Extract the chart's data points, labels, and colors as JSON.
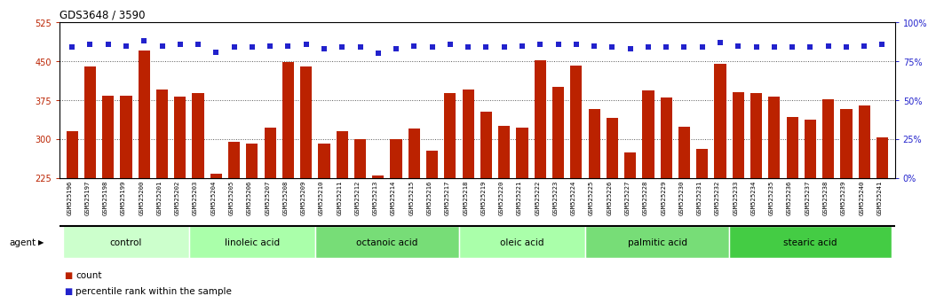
{
  "title": "GDS3648 / 3590",
  "samples": [
    "GSM525196",
    "GSM525197",
    "GSM525198",
    "GSM525199",
    "GSM525200",
    "GSM525201",
    "GSM525202",
    "GSM525203",
    "GSM525204",
    "GSM525205",
    "GSM525206",
    "GSM525207",
    "GSM525208",
    "GSM525209",
    "GSM525210",
    "GSM525211",
    "GSM525212",
    "GSM525213",
    "GSM525214",
    "GSM525215",
    "GSM525216",
    "GSM525217",
    "GSM525218",
    "GSM525219",
    "GSM525220",
    "GSM525221",
    "GSM525222",
    "GSM525223",
    "GSM525224",
    "GSM525225",
    "GSM525226",
    "GSM525227",
    "GSM525228",
    "GSM525229",
    "GSM525230",
    "GSM525231",
    "GSM525232",
    "GSM525233",
    "GSM525234",
    "GSM525235",
    "GSM525236",
    "GSM525237",
    "GSM525238",
    "GSM525239",
    "GSM525240",
    "GSM525241"
  ],
  "counts": [
    315,
    440,
    383,
    383,
    470,
    395,
    382,
    388,
    232,
    294,
    291,
    322,
    448,
    440,
    291,
    315,
    299,
    229,
    300,
    320,
    277,
    388,
    395,
    352,
    326,
    322,
    452,
    400,
    441,
    358,
    340,
    274,
    393,
    380,
    323,
    281,
    445,
    390,
    388,
    382,
    342,
    337,
    376,
    357,
    364,
    303
  ],
  "percentile_ranks": [
    84,
    86,
    86,
    85,
    88,
    85,
    86,
    86,
    81,
    84,
    84,
    85,
    85,
    86,
    83,
    84,
    84,
    80,
    83,
    85,
    84,
    86,
    84,
    84,
    84,
    85,
    86,
    86,
    86,
    85,
    84,
    83,
    84,
    84,
    84,
    84,
    87,
    85,
    84,
    84,
    84,
    84,
    85,
    84,
    85,
    86
  ],
  "groups": [
    {
      "label": "control",
      "start": 0,
      "end": 7,
      "color": "#ccffcc"
    },
    {
      "label": "linoleic acid",
      "start": 7,
      "end": 14,
      "color": "#aaffaa"
    },
    {
      "label": "octanoic acid",
      "start": 14,
      "end": 22,
      "color": "#77dd77"
    },
    {
      "label": "oleic acid",
      "start": 22,
      "end": 29,
      "color": "#aaffaa"
    },
    {
      "label": "palmitic acid",
      "start": 29,
      "end": 37,
      "color": "#77dd77"
    },
    {
      "label": "stearic acid",
      "start": 37,
      "end": 46,
      "color": "#44cc44"
    }
  ],
  "ylim_left": [
    225,
    525
  ],
  "ylim_right": [
    0,
    100
  ],
  "yticks_left": [
    225,
    300,
    375,
    450,
    525
  ],
  "yticks_right": [
    0,
    25,
    50,
    75,
    100
  ],
  "bar_color": "#bb2200",
  "dot_color": "#2222cc",
  "bg_color": "#ffffff",
  "agent_label": "agent",
  "legend_count_label": "count",
  "legend_pct_label": "percentile rank within the sample",
  "grid_color": "#555555",
  "xtick_bg": "#dddddd"
}
